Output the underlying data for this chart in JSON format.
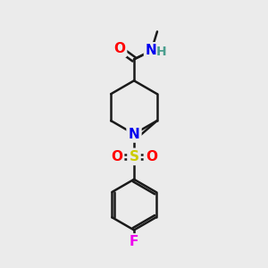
{
  "background_color": "#ebebeb",
  "bond_color": "#1a1a1a",
  "atom_colors": {
    "O": "#ff0000",
    "N": "#0000ee",
    "H": "#4a9e8e",
    "S": "#cccc00",
    "F": "#ee00ee"
  },
  "font_size": 11,
  "bond_width": 1.8,
  "fig_size": [
    3.0,
    3.0
  ],
  "dpi": 100,
  "xlim": [
    0,
    10
  ],
  "ylim": [
    0,
    10
  ]
}
